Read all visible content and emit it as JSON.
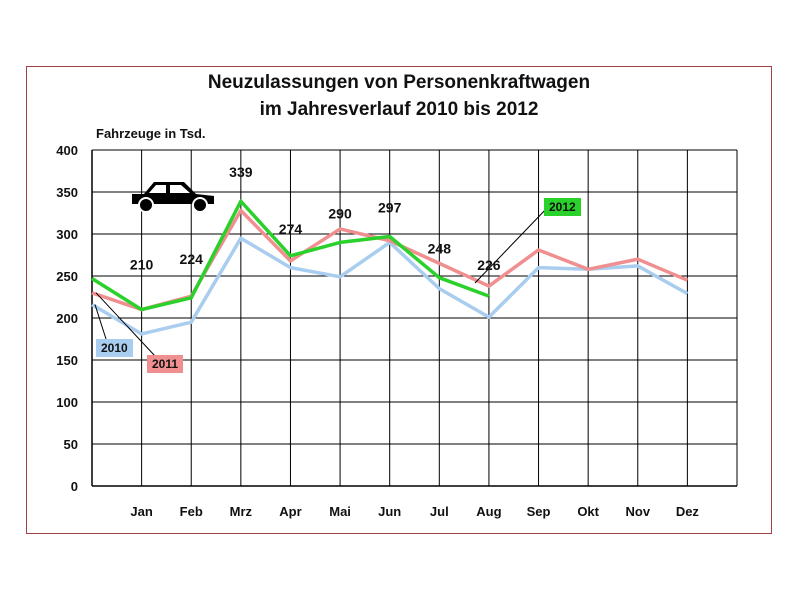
{
  "chart_data": {
    "type": "line",
    "title_line1": "Neuzulassungen von Personenkraftwagen",
    "title_line2": "im Jahresverlauf 2010 bis 2012",
    "ylabel": "Fahrzeuge in Tsd.",
    "ylim": [
      0,
      400
    ],
    "yticks": [
      0,
      50,
      100,
      150,
      200,
      250,
      300,
      350,
      400
    ],
    "categories": [
      "",
      "Jan",
      "Feb",
      "Mrz",
      "Apr",
      "Mai",
      "Jun",
      "Jul",
      "Aug",
      "Sep",
      "Okt",
      "Nov",
      "Dez"
    ],
    "grid": true,
    "series": [
      {
        "name": "2010",
        "color": "#a9cdef",
        "values": [
          216,
          181,
          195,
          295,
          260,
          249,
          290,
          235,
          201,
          260,
          258,
          262,
          229
        ]
      },
      {
        "name": "2011",
        "color": "#ef8f8f",
        "values": [
          230,
          210,
          226,
          328,
          268,
          306,
          292,
          265,
          238,
          281,
          258,
          270,
          245
        ]
      },
      {
        "name": "2012",
        "color": "#2bd12b",
        "values": [
          247,
          210,
          224,
          339,
          274,
          290,
          297,
          248,
          226,
          null,
          null,
          null,
          null
        ]
      }
    ],
    "data_labels": [
      "210",
      "224",
      "339",
      "274",
      "290",
      "297",
      "248",
      "226"
    ],
    "icon": "car-icon"
  }
}
